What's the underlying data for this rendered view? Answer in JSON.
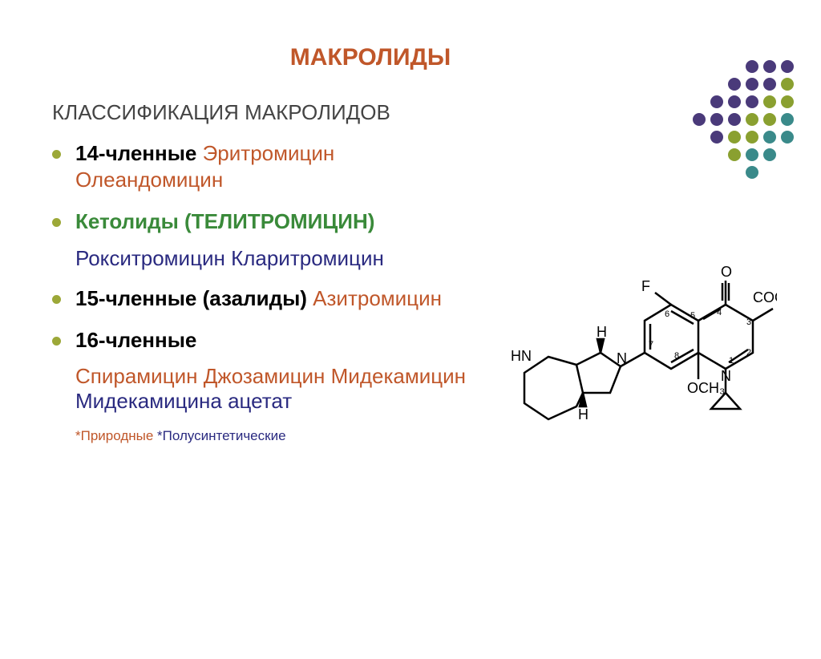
{
  "title": {
    "text": "МАКРОЛИДЫ",
    "color": "#c0572a"
  },
  "heading": {
    "text": "КЛАССИФИКАЦИЯ МАКРОЛИДОВ",
    "color": "#444444"
  },
  "items": [
    {
      "parts": [
        {
          "text": "14-членные ",
          "color": "#000000",
          "bold": true
        },
        {
          "text": "Эритромицин Олеандомицин",
          "color": "#c0572a",
          "bold": false
        }
      ]
    },
    {
      "parts": [
        {
          "text": "Кетолиды (ТЕЛИТРОМИЦИН)",
          "color": "#3a8a3a",
          "bold": true
        }
      ],
      "sub": {
        "text": "Рокситромицин Кларитромицин",
        "color": "#2a2a80"
      }
    },
    {
      "parts": [
        {
          "text": "15-членные (азалиды) ",
          "color": "#000000",
          "bold": true
        },
        {
          "text": "Азитромицин",
          "color": "#c0572a",
          "bold": false
        }
      ]
    },
    {
      "parts": [
        {
          "text": "16-членные ",
          "color": "#000000",
          "bold": true
        }
      ],
      "sub": {
        "parts": [
          {
            "text": "Спирамицин Джозамицин Мидекамицин",
            "color": "#c0572a"
          },
          {
            "text": "Мидекамицина ацетат",
            "color": "#2a2a80"
          }
        ]
      }
    }
  ],
  "footnote": {
    "parts": [
      {
        "text": "*Природные  ",
        "color": "#c0572a"
      },
      {
        "text": "*Полусинтетические",
        "color": "#2a2a80"
      }
    ]
  },
  "dotPattern": {
    "colors": {
      "purple": "#4a3a7a",
      "green": "#8aa030",
      "teal": "#3a8a8a",
      "empty": "transparent"
    },
    "grid": [
      [
        "empty",
        "empty",
        "empty",
        "empty",
        "purple",
        "purple",
        "purple"
      ],
      [
        "empty",
        "empty",
        "empty",
        "purple",
        "purple",
        "purple",
        "green"
      ],
      [
        "empty",
        "empty",
        "purple",
        "purple",
        "purple",
        "green",
        "green"
      ],
      [
        "empty",
        "purple",
        "purple",
        "purple",
        "green",
        "green",
        "teal"
      ],
      [
        "empty",
        "empty",
        "purple",
        "green",
        "green",
        "teal",
        "teal"
      ],
      [
        "empty",
        "empty",
        "empty",
        "green",
        "teal",
        "teal",
        "empty"
      ],
      [
        "empty",
        "empty",
        "empty",
        "empty",
        "teal",
        "empty",
        "empty"
      ]
    ]
  },
  "structure": {
    "labels": [
      "O",
      "COOH",
      "F",
      "N",
      "N",
      "HN",
      "H",
      "H",
      "OCH₃"
    ],
    "ringNumbers": [
      "1",
      "2",
      "3",
      "4",
      "5",
      "6",
      "7",
      "8"
    ],
    "strokeColor": "#000000",
    "strokeWidth": 2
  }
}
